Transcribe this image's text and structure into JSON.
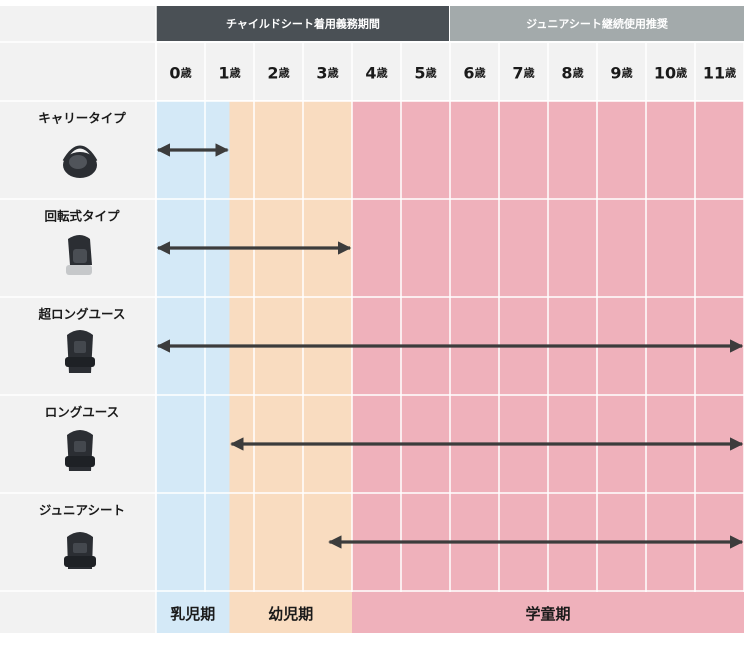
{
  "chart_data": {
    "type": "table",
    "header_groups": [
      {
        "label": "チャイルドシート着用義務期間",
        "from_age": 0,
        "to_age": 5,
        "color": "#4a5055"
      },
      {
        "label": "ジュニアシート継続使用推奨",
        "from_age": 6,
        "to_age": 11,
        "color": "#a3aaab"
      }
    ],
    "ages": [
      "0歳",
      "1歳",
      "2歳",
      "3歳",
      "4歳",
      "5歳",
      "6歳",
      "7歳",
      "8歳",
      "9歳",
      "10歳",
      "11歳"
    ],
    "periods": [
      {
        "label": "乳児期",
        "from": 0,
        "to": 1.5,
        "color": "#d4e9f7"
      },
      {
        "label": "幼児期",
        "from": 1.5,
        "to": 4,
        "color": "#f9dcc0"
      },
      {
        "label": "学童期",
        "from": 4,
        "to": 12,
        "color": "#efb1bb"
      }
    ],
    "rows": [
      {
        "label": "キャリータイプ",
        "icon": "infant-carrier-seat-icon",
        "from": 0,
        "to": 1.5,
        "arrow_start": "both",
        "arrow_end": "both"
      },
      {
        "label": "回転式タイプ",
        "icon": "rotating-car-seat-icon",
        "from": 0,
        "to": 4,
        "arrow_start": "both",
        "arrow_end": "both"
      },
      {
        "label": "超ロングユース",
        "icon": "extra-long-use-seat-icon",
        "from": 0,
        "to": 12,
        "arrow_start": "both",
        "arrow_end": "both"
      },
      {
        "label": "ロングユース",
        "icon": "long-use-seat-icon",
        "from": 1.5,
        "to": 12,
        "arrow_start": "both",
        "arrow_end": "both"
      },
      {
        "label": "ジュニアシート",
        "icon": "booster-seat-icon",
        "from": 3.5,
        "to": 12,
        "arrow_start": "both",
        "arrow_end": "both"
      }
    ],
    "colors": {
      "label_column": "#f2f2f2",
      "age_header": "#f2f2f2",
      "grid_line": "#ffffff",
      "arrow": "#3c3c3c",
      "seat": "#2b2e33"
    }
  }
}
